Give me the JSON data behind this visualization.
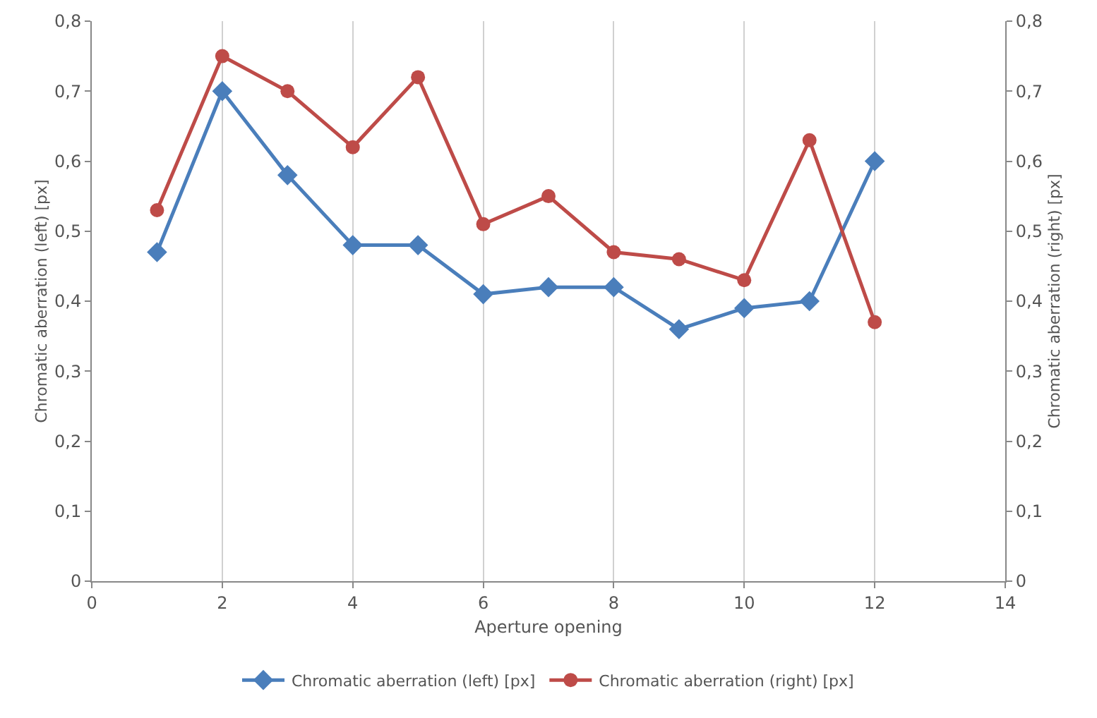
{
  "chart_data": {
    "type": "line",
    "xlabel": "Aperture opening",
    "ylabel": "Chromatic aberration (left) [px]",
    "y2label": "Chromatic aberration (right) [px]",
    "x": [
      1,
      2,
      3,
      4,
      5,
      6,
      7,
      8,
      9,
      10,
      11,
      12
    ],
    "series": [
      {
        "name": "Chromatic aberration (left) [px]",
        "color": "#4a7ebb",
        "marker": "diamond",
        "values": [
          0.47,
          0.7,
          0.58,
          0.48,
          0.48,
          0.41,
          0.42,
          0.42,
          0.36,
          0.39,
          0.4,
          0.6
        ]
      },
      {
        "name": "Chromatic aberration (right) [px]",
        "color": "#be4b48",
        "marker": "circle",
        "values": [
          0.53,
          0.75,
          0.7,
          0.62,
          0.72,
          0.51,
          0.55,
          0.47,
          0.46,
          0.43,
          0.63,
          0.37
        ]
      }
    ],
    "xlim": [
      0,
      14
    ],
    "xticks": [
      0,
      2,
      4,
      6,
      8,
      10,
      12,
      14
    ],
    "ylim": [
      0,
      0.8
    ],
    "yticks": [
      0,
      {
        "value": 0.1,
        "label": "0,1"
      },
      {
        "value": 0.2,
        "label": "0,2"
      },
      {
        "value": 0.3,
        "label": "0,3"
      },
      {
        "value": 0.4,
        "label": "0,4"
      },
      {
        "value": 0.5,
        "label": "0,5"
      },
      {
        "value": 0.6,
        "label": "0,6"
      },
      {
        "value": 0.7,
        "label": "0,7"
      },
      {
        "value": 0.8,
        "label": "0,8"
      }
    ],
    "y2lim": [
      0,
      0.8
    ],
    "y2ticks": [
      0,
      {
        "value": 0.1,
        "label": "0,1"
      },
      {
        "value": 0.2,
        "label": "0,2"
      },
      {
        "value": 0.3,
        "label": "0,3"
      },
      {
        "value": 0.4,
        "label": "0,4"
      },
      {
        "value": 0.5,
        "label": "0,5"
      },
      {
        "value": 0.6,
        "label": "0,6"
      },
      {
        "value": 0.7,
        "label": "0,7"
      },
      {
        "value": 0.8,
        "label": "0,8"
      }
    ],
    "grid": "x",
    "legend": "bottom",
    "line_style": "solid"
  }
}
